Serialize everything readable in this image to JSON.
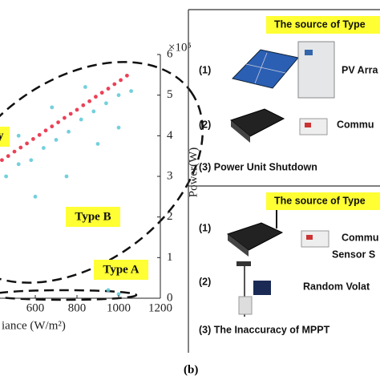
{
  "chart_data": {
    "type": "scatter",
    "x_label": "iance (W/m²)",
    "y_label": "Power(W)",
    "y_multiplier": "×10⁵",
    "xlim": [
      0,
      1200
    ],
    "xticks": [
      600,
      800,
      1000,
      1200
    ],
    "ylim": [
      0,
      600000
    ],
    "yticks": [
      {
        "value": 0,
        "label": "0"
      },
      {
        "value": 100000,
        "label": "1"
      },
      {
        "value": 200000,
        "label": "2"
      },
      {
        "value": 300000,
        "label": "3"
      },
      {
        "value": 400000,
        "label": "4"
      },
      {
        "value": 500000,
        "label": "5"
      },
      {
        "value": 600000,
        "label": "6"
      }
    ],
    "annotations": [
      "Type B",
      "Type A",
      "y"
    ],
    "series": [
      {
        "name": null,
        "color": "#5bc8d6",
        "x": [
          460,
          520,
          580,
          640,
          700,
          760,
          820,
          880,
          940,
          1000,
          1060,
          600,
          750,
          900,
          1000,
          520,
          680,
          840,
          950,
          1000
        ],
        "values": [
          300000,
          330000,
          340000,
          370000,
          390000,
          410000,
          440000,
          460000,
          480000,
          500000,
          510000,
          250000,
          300000,
          380000,
          420000,
          400000,
          470000,
          520000,
          20000,
          10000
        ]
      },
      {
        "name": null,
        "color": "#e8203a",
        "x": [
          440,
          470,
          500,
          530,
          560,
          590,
          620,
          650,
          680,
          710,
          740,
          770,
          800,
          830,
          860,
          890,
          920,
          950,
          980,
          1010,
          1040
        ],
        "values": [
          340000,
          350000,
          361000,
          371000,
          381000,
          392000,
          402000,
          413000,
          423000,
          433000,
          444000,
          454000,
          464000,
          475000,
          485000,
          496000,
          506000,
          516000,
          527000,
          537000,
          548000
        ]
      }
    ]
  },
  "panel": {
    "label": "(b)",
    "section1": {
      "title": "The source of Type",
      "items": [
        "(1)",
        "PV Arra",
        "(2)",
        "Commu",
        "(3) Power Unit Shutdown"
      ]
    },
    "section2": {
      "title": "The source of Type",
      "items": [
        "(1)",
        "Commu",
        "Sensor S",
        "(2)",
        "Random Volat",
        "(3) The Inaccuracy of MPPT"
      ]
    }
  }
}
